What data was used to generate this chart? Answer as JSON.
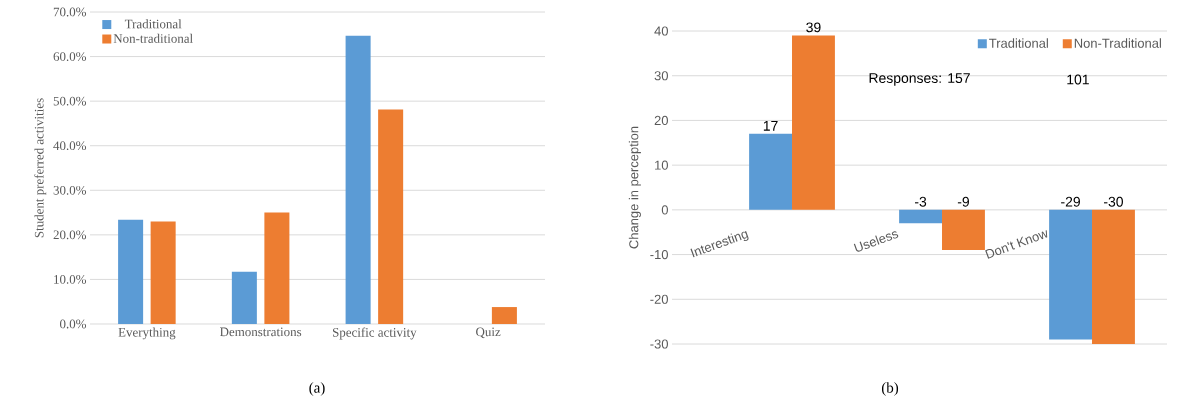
{
  "chart_data": [
    {
      "type": "bar",
      "categories": [
        "Everything",
        "Demonstrations",
        "Specific activity",
        "Quiz"
      ],
      "ylabel": "Student preferred activities",
      "series": [
        {
          "name": "Traditional",
          "color": "#5b9bd5",
          "values": [
            23.4,
            11.7,
            64.7,
            0
          ]
        },
        {
          "name": "Non-traditional",
          "color": "#ed7d31",
          "values": [
            23.0,
            25.0,
            48.1,
            3.8
          ]
        }
      ],
      "ylim": [
        0,
        70
      ],
      "yticks": [
        {
          "value": 0,
          "label": "0.0%"
        },
        {
          "value": 10,
          "label": "10.0%"
        },
        {
          "value": 20,
          "label": "20.0%"
        },
        {
          "value": 30,
          "label": "30.0%"
        },
        {
          "value": 40,
          "label": "40.0%"
        },
        {
          "value": 50,
          "label": "50.0%"
        },
        {
          "value": 60,
          "label": "60.0%"
        },
        {
          "value": 70,
          "label": "70.0%"
        }
      ],
      "grid": "y",
      "legend": "top left",
      "annotations": [
        "(a)"
      ]
    },
    {
      "type": "bar",
      "categories": [
        "Interesting",
        "Useless",
        "Don't Know"
      ],
      "ylabel": "Change in perception",
      "series": [
        {
          "name": "Traditional",
          "color": "#5b9bd5",
          "values": [
            17,
            -3,
            -29
          ],
          "value_labels": [
            "17",
            "-3",
            "-29"
          ]
        },
        {
          "name": "Non-Traditional",
          "color": "#ed7d31",
          "values": [
            39,
            -9,
            -30
          ],
          "value_labels": [
            "39",
            "-9",
            "-30"
          ]
        }
      ],
      "ylim": [
        -30,
        40
      ],
      "yticks": [
        -30,
        -20,
        -10,
        0,
        10,
        20,
        30,
        40
      ],
      "grid": "y",
      "legend": "top right",
      "annotations": [
        "Responses: 157",
        "101",
        "(b)"
      ]
    }
  ]
}
